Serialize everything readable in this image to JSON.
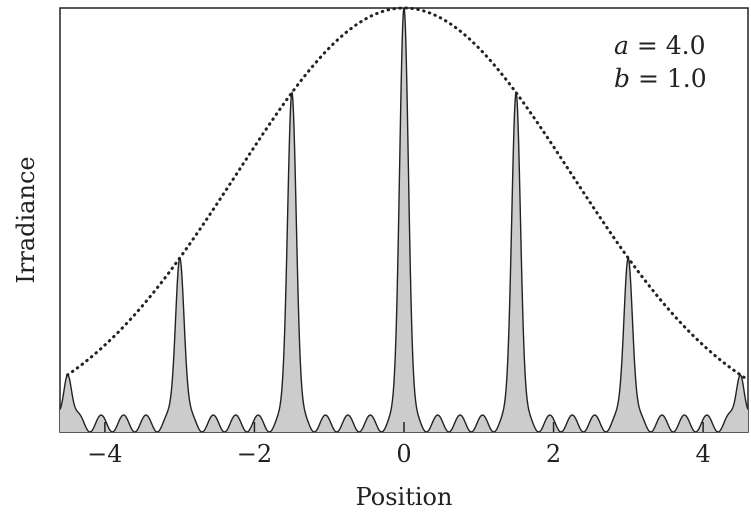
{
  "chart_data": {
    "type": "line",
    "xlabel": "Position",
    "ylabel": "Irradiance",
    "xlim": [
      -4.6,
      4.6
    ],
    "ylim": [
      0,
      1.0
    ],
    "xticks": [
      -4,
      -2,
      0,
      2,
      4
    ],
    "xtick_labels": [
      "−4",
      "−2",
      "0",
      "2",
      "4"
    ],
    "grid": false,
    "annotations": [
      {
        "var": "a",
        "text": " = 4.0"
      },
      {
        "var": "b",
        "text": " = 1.0"
      }
    ],
    "peaks": [
      {
        "x": -3.0,
        "y": 0.41
      },
      {
        "x": -1.5,
        "y": 0.81
      },
      {
        "x": 0.0,
        "y": 1.0
      },
      {
        "x": 1.5,
        "y": 0.81
      },
      {
        "x": 3.0,
        "y": 0.41
      }
    ],
    "series": [
      {
        "style": "solid-filled",
        "fill": "#cccccc",
        "stroke": "#222222"
      },
      {
        "style": "dotted",
        "stroke": "#222222"
      }
    ]
  }
}
